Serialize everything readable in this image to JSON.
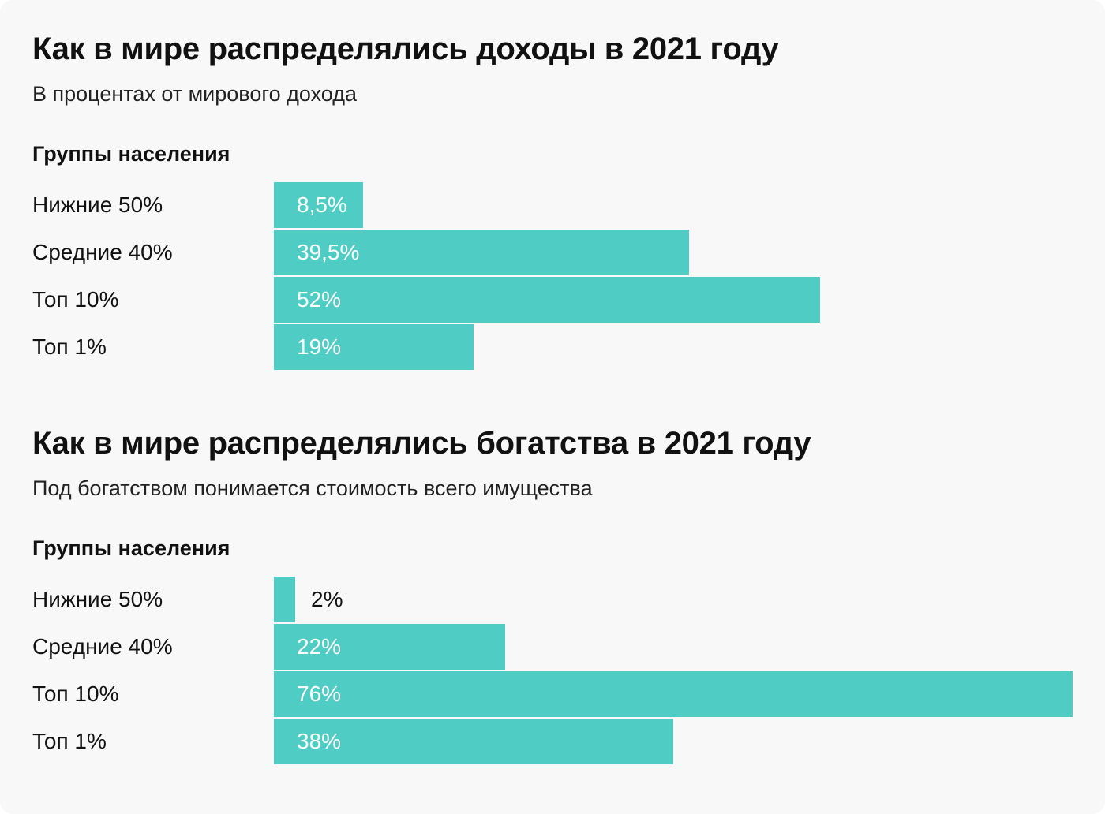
{
  "chart_data": [
    {
      "type": "bar",
      "title": "Как в мире распределялись доходы в 2021 году",
      "subtitle": "В процентах от мирового дохода",
      "category_header": "Группы населения",
      "categories": [
        "Нижние 50%",
        "Средние 40%",
        "Топ 10%",
        "Топ 1%"
      ],
      "values": [
        8.5,
        39.5,
        52,
        19
      ],
      "labels": [
        "8,5%",
        "39,5%",
        "52%",
        "19%"
      ],
      "xlim": [
        0,
        76
      ],
      "color": "#4fcdc4"
    },
    {
      "type": "bar",
      "title": "Как в мире распределялись богатства в 2021 году",
      "subtitle": "Под богатством понимается стоимость всего имущества",
      "category_header": "Группы населения",
      "categories": [
        "Нижние 50%",
        "Средние 40%",
        "Топ 10%",
        "Топ 1%"
      ],
      "values": [
        2,
        22,
        76,
        38
      ],
      "labels": [
        "2%",
        "22%",
        "76%",
        "38%"
      ],
      "xlim": [
        0,
        76
      ],
      "color": "#4fcdc4"
    }
  ]
}
